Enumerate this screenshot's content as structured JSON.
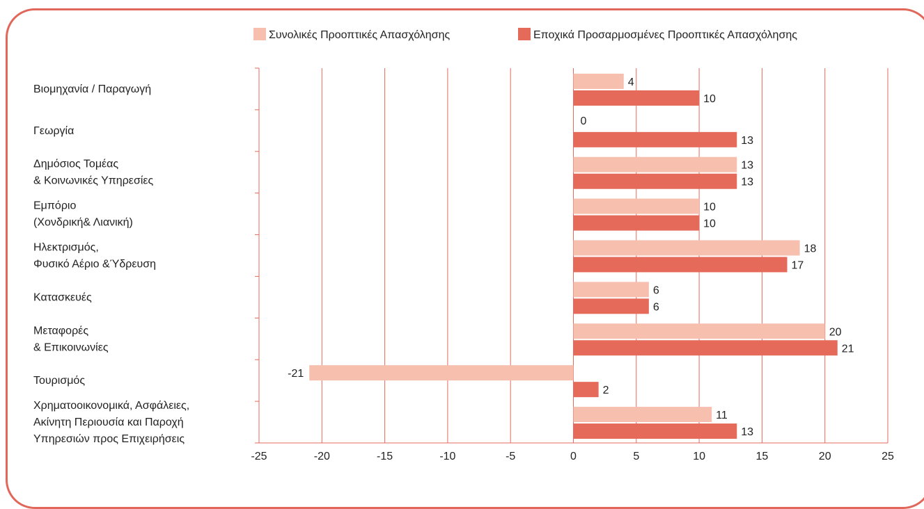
{
  "chart_data": {
    "type": "bar",
    "orientation": "horizontal",
    "categories": [
      [
        "Βιομηχανία / Παραγωγή"
      ],
      [
        "Γεωργία"
      ],
      [
        "Δημόσιος Τομέας",
        "& Κοινωνικές Υπηρεσίες"
      ],
      [
        "Εμπόριο",
        "(Χονδρική& Λιανική)"
      ],
      [
        "Ηλεκτρισμός,",
        "Φυσικό Αέριο &Ύδρευση"
      ],
      [
        "Κατασκευές"
      ],
      [
        "Μεταφορές",
        "& Επικοινωνίες"
      ],
      [
        "Τουρισμός"
      ],
      [
        "Χρηματοοικονομικά, Ασφάλειες,",
        "Ακίνητη Περιουσία και Παροχή",
        "Υπηρεσιών προς Επιχειρήσεις"
      ]
    ],
    "series": [
      {
        "name": "Συνολικές Προοπτικές Απασχόλησης",
        "color": "#f6bfae",
        "values": [
          4,
          0,
          13,
          10,
          18,
          6,
          20,
          -21,
          11
        ]
      },
      {
        "name": "Εποχικά Προσαρμοσμένες Προοπτικές Απασχόλησης",
        "color": "#e56a5a",
        "values": [
          10,
          13,
          13,
          10,
          17,
          6,
          21,
          2,
          13
        ]
      }
    ],
    "xlim": [
      -25,
      25
    ],
    "xticks": [
      -25,
      -20,
      -15,
      -10,
      -5,
      0,
      5,
      10,
      15,
      20,
      25
    ],
    "grid": true,
    "gridColor": "#e56a5a",
    "legend": "top"
  }
}
